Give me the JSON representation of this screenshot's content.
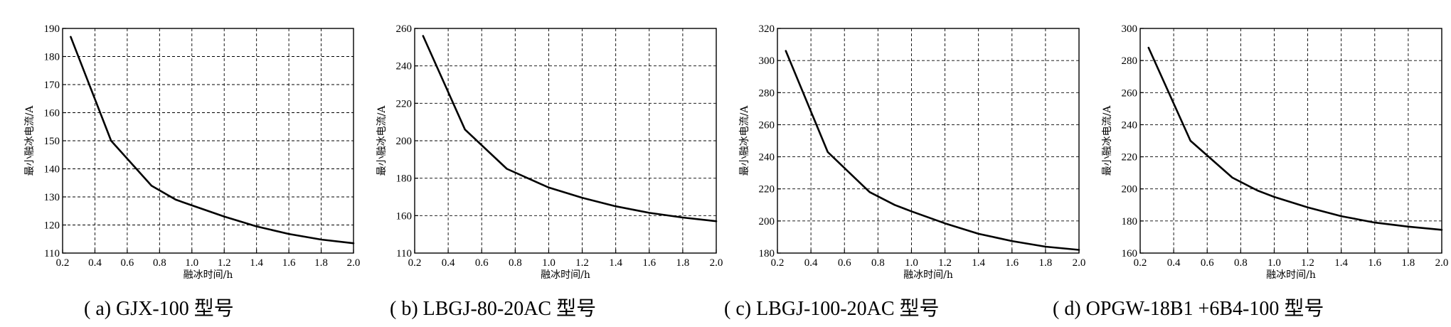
{
  "chart_data": [
    {
      "type": "line",
      "caption": "( a) GJX-100 型号",
      "xlabel": "融冰时间/h",
      "ylabel": "最小融冰电流/A",
      "xlim": [
        0.2,
        2.0
      ],
      "ylim": [
        110,
        190
      ],
      "xticks": [
        0.2,
        0.4,
        0.6,
        0.8,
        1.0,
        1.2,
        1.4,
        1.6,
        1.8,
        2.0
      ],
      "xtick_labels": [
        "0.2",
        "0.4",
        "0.6",
        "0.8",
        "1.0",
        "1.2",
        "1.4",
        "1.6",
        "1.8",
        "2.0"
      ],
      "yticks": [
        110,
        120,
        130,
        140,
        150,
        160,
        170,
        180,
        190
      ],
      "ytick_labels": [
        "110",
        "120",
        "130",
        "140",
        "150",
        "160",
        "170",
        "180",
        "190"
      ],
      "grid": true,
      "series": [
        {
          "x": [
            0.25,
            0.5,
            0.75,
            0.9,
            1.0,
            1.2,
            1.4,
            1.6,
            1.8,
            2.0
          ],
          "y": [
            187,
            150,
            134,
            129,
            127,
            123,
            119.5,
            116.8,
            114.8,
            113.5
          ]
        }
      ]
    },
    {
      "type": "line",
      "caption": "( b) LBGJ-80-20AC 型号",
      "xlabel": "融冰时间/h",
      "ylabel": "最小融冰电流/A",
      "xlim": [
        0.2,
        2.0
      ],
      "ylim": [
        140,
        260
      ],
      "xticks": [
        0.2,
        0.4,
        0.6,
        0.8,
        1.0,
        1.2,
        1.4,
        1.6,
        1.8,
        2.0
      ],
      "xtick_labels": [
        "0.2",
        "0.4",
        "0.6",
        "0.8",
        "1.0",
        "1.2",
        "1.4",
        "1.6",
        "1.8",
        "2.0"
      ],
      "yticks": [
        160,
        180,
        200,
        220,
        240,
        260
      ],
      "ytick_labels": [
        "160",
        "180",
        "200",
        "220",
        "240",
        "260"
      ],
      "ytick_bottom_label": "110",
      "grid": true,
      "series": [
        {
          "x": [
            0.25,
            0.5,
            0.75,
            0.9,
            1.0,
            1.2,
            1.4,
            1.6,
            1.8,
            2.0
          ],
          "y": [
            256,
            206,
            185,
            179,
            175,
            169.5,
            165,
            161.5,
            159,
            157
          ]
        }
      ]
    },
    {
      "type": "line",
      "caption": "( c) LBGJ-100-20AC 型号",
      "xlabel": "融冰时间/h",
      "ylabel": "最小融冰电流/A",
      "xlim": [
        0.2,
        2.0
      ],
      "ylim": [
        180,
        320
      ],
      "xticks": [
        0.2,
        0.4,
        0.6,
        0.8,
        1.0,
        1.2,
        1.4,
        1.6,
        1.8,
        2.0
      ],
      "xtick_labels": [
        "0.2",
        "0.4",
        "0.6",
        "0.8",
        "1.0",
        "1.2",
        "1.4",
        "1.6",
        "1.8",
        "2.0"
      ],
      "yticks": [
        180,
        200,
        220,
        240,
        260,
        280,
        300,
        320
      ],
      "ytick_labels": [
        "180",
        "200",
        "220",
        "240",
        "260",
        "280",
        "300",
        "320"
      ],
      "grid": true,
      "series": [
        {
          "x": [
            0.25,
            0.5,
            0.75,
            0.9,
            1.0,
            1.2,
            1.4,
            1.6,
            1.8,
            2.0
          ],
          "y": [
            306,
            243,
            218,
            210,
            206,
            198.5,
            192,
            187.5,
            184,
            182
          ]
        }
      ]
    },
    {
      "type": "line",
      "caption": "( d) OPGW-18B1 +6B4-100 型号",
      "xlabel": "融冰时间/h",
      "ylabel": "最小融冰电流/A",
      "xlim": [
        0.2,
        2.0
      ],
      "ylim": [
        160,
        300
      ],
      "xticks": [
        0.2,
        0.4,
        0.6,
        0.8,
        1.0,
        1.2,
        1.4,
        1.6,
        1.8,
        2.0
      ],
      "xtick_labels": [
        "0.2",
        "0.4",
        "0.6",
        "0.8",
        "1.0",
        "1.2",
        "1.4",
        "1.6",
        "1.8",
        "2.0"
      ],
      "yticks": [
        160,
        180,
        200,
        220,
        240,
        260,
        280,
        300
      ],
      "ytick_labels": [
        "160",
        "180",
        "200",
        "220",
        "240",
        "260",
        "280",
        "300"
      ],
      "grid": true,
      "series": [
        {
          "x": [
            0.25,
            0.5,
            0.75,
            0.9,
            1.0,
            1.2,
            1.4,
            1.6,
            1.8,
            2.0
          ],
          "y": [
            288,
            230,
            207,
            199,
            195,
            188.5,
            183,
            179,
            176.5,
            174.5
          ]
        }
      ]
    }
  ]
}
